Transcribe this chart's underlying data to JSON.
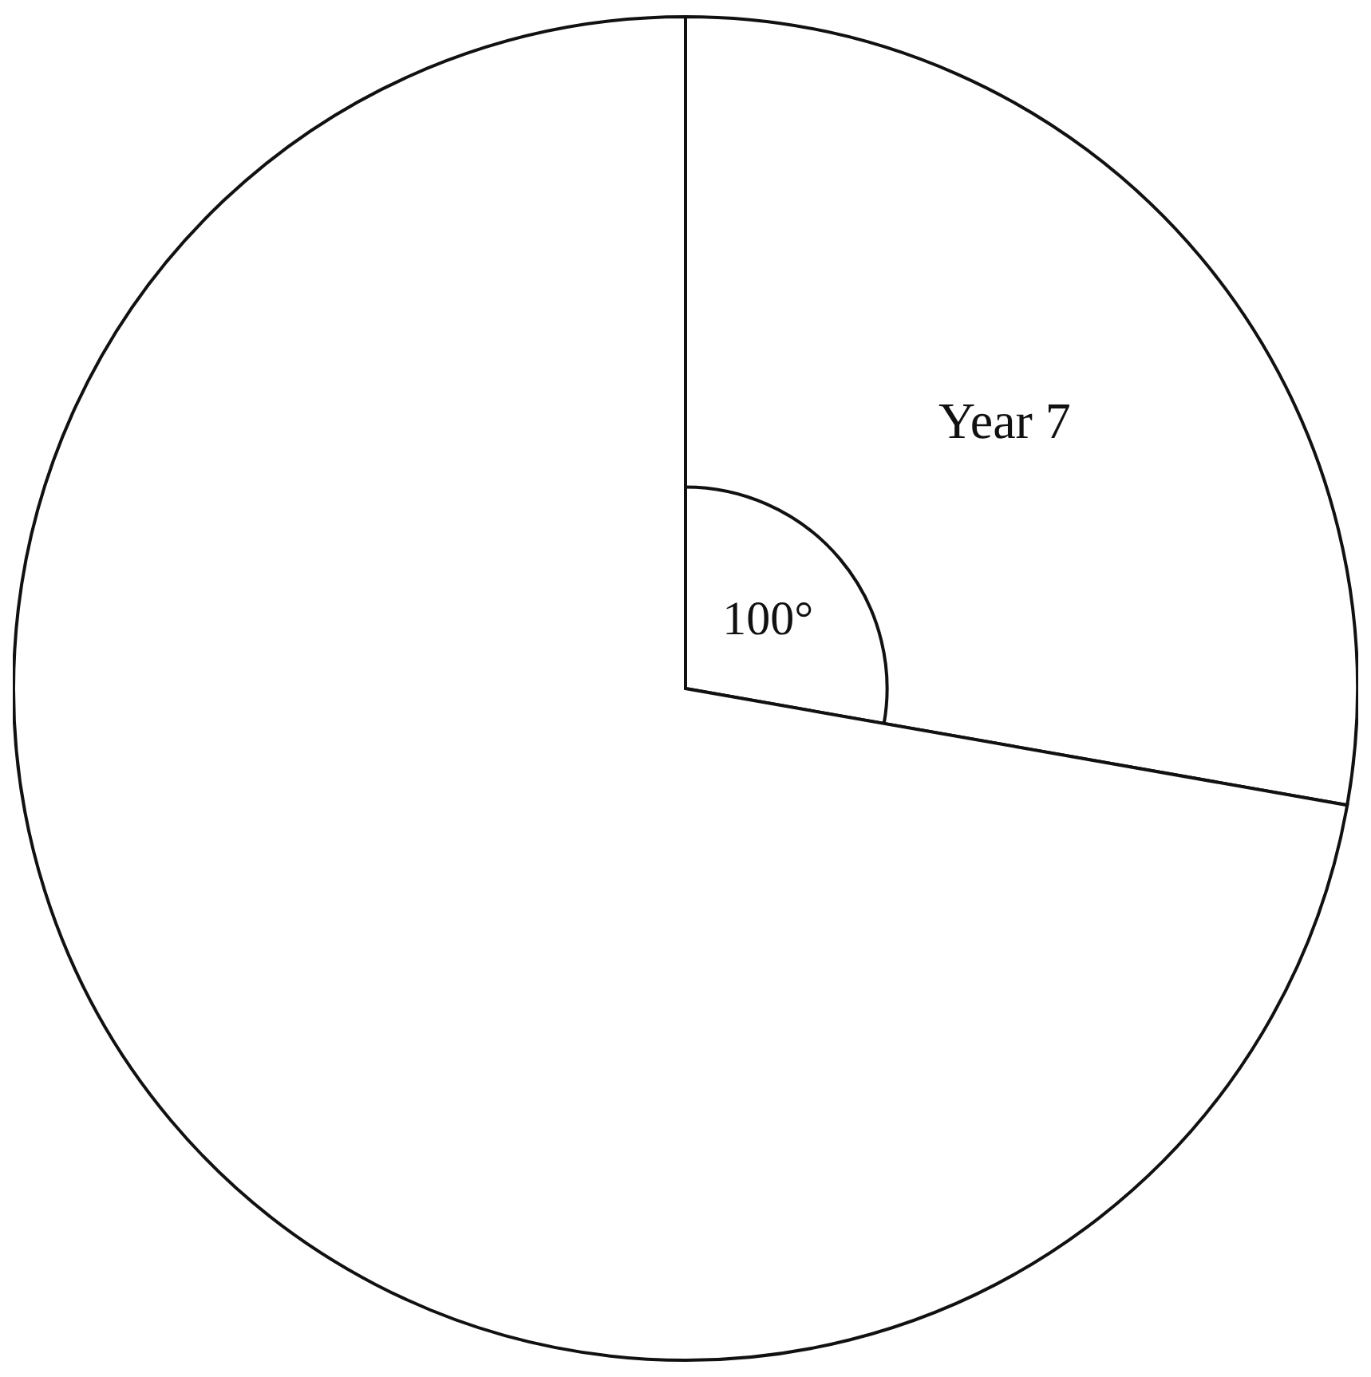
{
  "chart_data": {
    "type": "pie",
    "categories": [
      "Year 7",
      null
    ],
    "values": [
      100,
      260
    ],
    "colors": [
      "#ffffff",
      "#ffffff"
    ],
    "value_labels": [
      "100°",
      null
    ]
  }
}
